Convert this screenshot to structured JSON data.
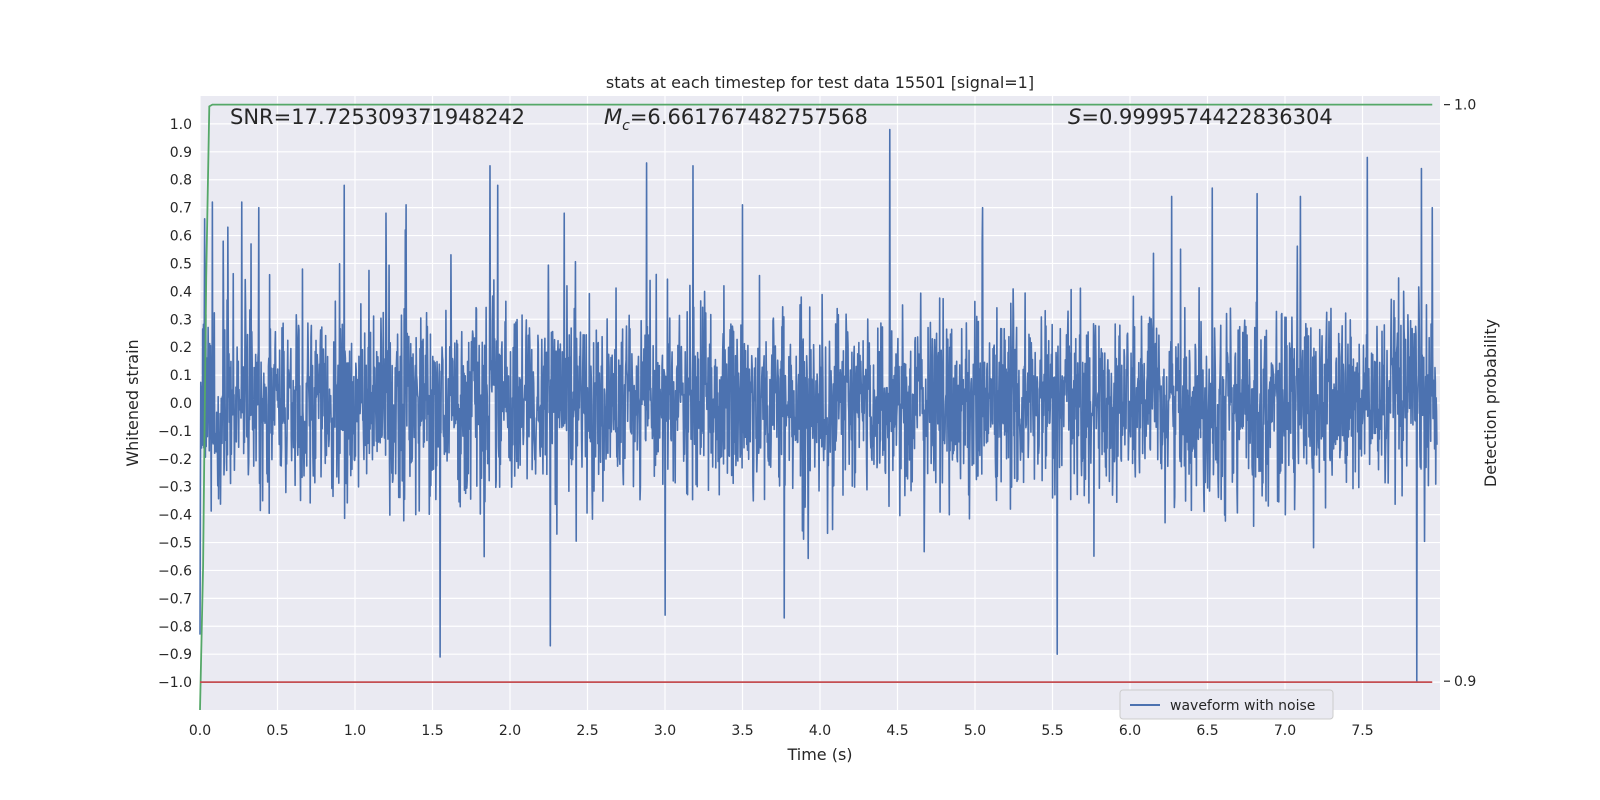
{
  "chart_data": {
    "type": "line",
    "title": "stats at each timestep for test data 15501 [signal=1]",
    "xlabel": "Time (s)",
    "ylabel": "Whitened strain",
    "y2label": "Detection probability",
    "xlim": [
      0.0,
      8.0
    ],
    "ylim": [
      -1.1,
      1.1
    ],
    "y2lim": [
      0.895,
      1.0015
    ],
    "xticks": [
      "0.0",
      "0.5",
      "1.0",
      "1.5",
      "2.0",
      "2.5",
      "3.0",
      "3.5",
      "4.0",
      "4.5",
      "5.0",
      "5.5",
      "6.0",
      "6.5",
      "7.0",
      "7.5"
    ],
    "yticks": [
      "1.0",
      "0.9",
      "0.8",
      "0.7",
      "0.6",
      "0.5",
      "0.4",
      "0.3",
      "0.2",
      "0.1",
      "0.0",
      "−0.1",
      "−0.2",
      "−0.3",
      "−0.4",
      "−0.5",
      "−0.6",
      "−0.7",
      "−0.8",
      "−0.9",
      "−1.0"
    ],
    "y2ticks": [
      "1.0",
      "0.9"
    ],
    "grid": true,
    "annotations": {
      "snr": "SNR=17.725309371948242",
      "mc_symbol": "M",
      "mc_sub": "c",
      "mc_value": "=6.661767482757568",
      "s_symbol": "S",
      "s_value": "=0.9999574422836304"
    },
    "legend": {
      "placement": "lower-right",
      "entries": [
        "waveform with noise"
      ]
    },
    "series": [
      {
        "name": "waveform with noise",
        "axis": "left",
        "color": "#4c72b0",
        "description_amplitude": 0.3,
        "peaks": [
          [
            0.0,
            -0.83
          ],
          [
            0.03,
            0.66
          ],
          [
            0.08,
            0.72
          ],
          [
            0.15,
            0.58
          ],
          [
            0.18,
            0.63
          ],
          [
            0.27,
            0.72
          ],
          [
            0.33,
            0.57
          ],
          [
            0.38,
            0.7
          ],
          [
            0.45,
            0.46
          ],
          [
            0.66,
            0.48
          ],
          [
            0.93,
            0.78
          ],
          [
            1.2,
            0.68
          ],
          [
            1.33,
            0.71
          ],
          [
            1.55,
            -0.91
          ],
          [
            1.87,
            0.85
          ],
          [
            1.92,
            0.78
          ],
          [
            2.26,
            -0.87
          ],
          [
            2.35,
            0.68
          ],
          [
            2.88,
            0.86
          ],
          [
            3.0,
            -0.76
          ],
          [
            3.18,
            0.85
          ],
          [
            3.5,
            0.71
          ],
          [
            3.77,
            -0.77
          ],
          [
            4.45,
            0.98
          ],
          [
            5.05,
            0.7
          ],
          [
            5.53,
            -0.9
          ],
          [
            6.27,
            0.74
          ],
          [
            6.53,
            0.77
          ],
          [
            6.82,
            0.75
          ],
          [
            7.1,
            0.74
          ],
          [
            7.53,
            0.88
          ],
          [
            7.85,
            -1.0
          ],
          [
            7.88,
            0.84
          ],
          [
            7.95,
            0.7
          ]
        ]
      },
      {
        "name": "",
        "axis": "right",
        "color": "#55a868",
        "x": [
          0.0,
          0.02,
          0.04,
          0.06,
          0.08,
          0.1,
          0.15,
          0.3,
          1.0,
          4.0,
          7.95
        ],
        "values": [
          0.86,
          0.92,
          0.97,
          0.9997,
          1.0,
          1.0,
          1.0,
          1.0,
          1.0,
          1.0,
          1.0
        ]
      },
      {
        "name": "",
        "axis": "left",
        "color": "#c44e52",
        "x": [
          0.0,
          7.95
        ],
        "values": [
          -1.0,
          -1.0
        ]
      }
    ]
  }
}
